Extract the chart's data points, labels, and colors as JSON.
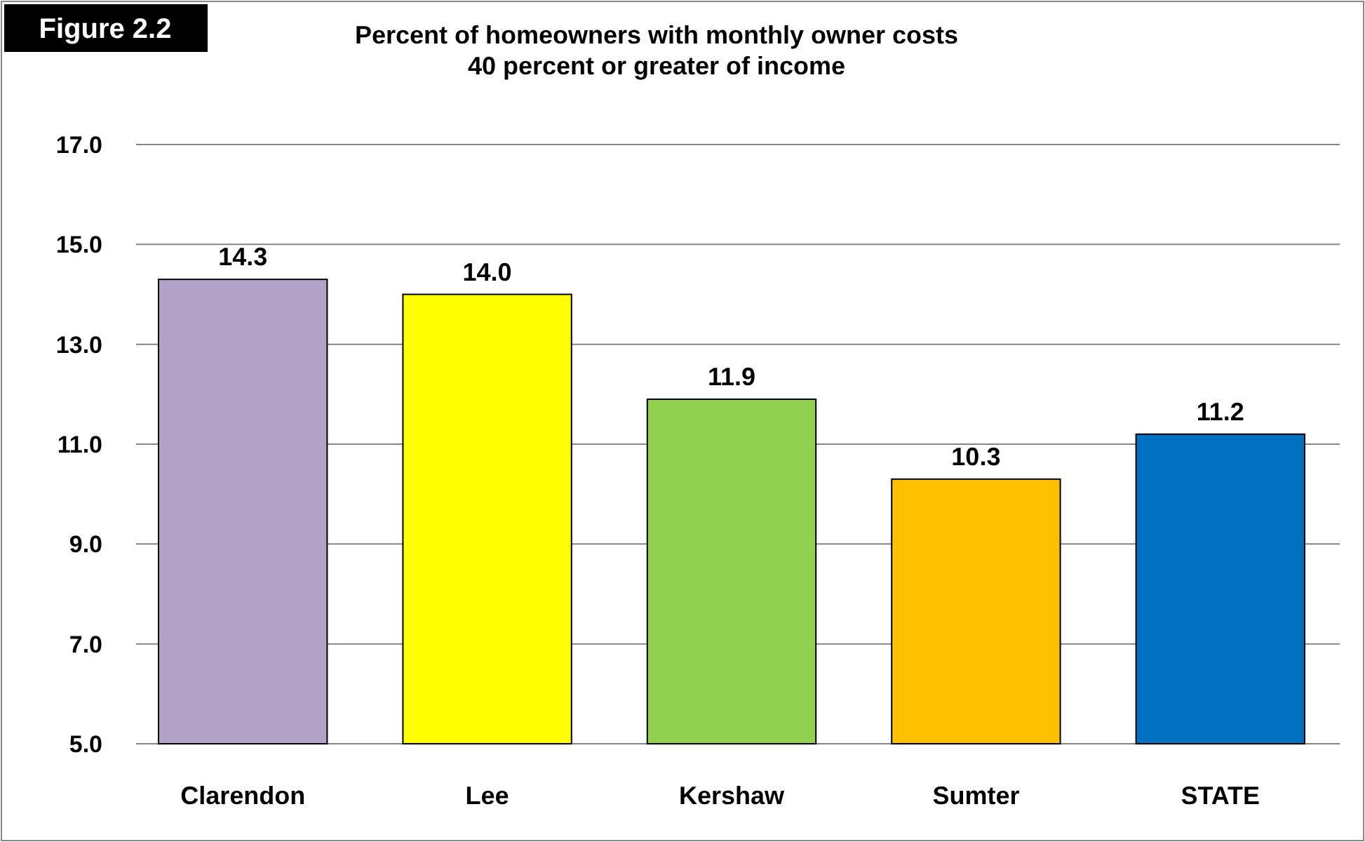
{
  "chart_data": {
    "type": "bar",
    "title": "Percent of homeowners with monthly owner costs\n40 percent or greater of income",
    "annotations": [
      "Figure 2.2"
    ],
    "categories": [
      "Clarendon",
      "Lee",
      "Kershaw",
      "Sumter",
      "STATE"
    ],
    "values": [
      14.3,
      14.0,
      11.9,
      10.3,
      11.2
    ],
    "value_labels": [
      "14.3",
      "14.0",
      "11.9",
      "10.3",
      "11.2"
    ],
    "colors": [
      "#b2a2c7",
      "#ffff00",
      "#92d050",
      "#ffc000",
      "#0070c0"
    ],
    "ylim": [
      5,
      17
    ],
    "yticks": [
      {
        "value": 5,
        "label": "5.0"
      },
      {
        "value": 7,
        "label": "7.0"
      },
      {
        "value": 9,
        "label": "9.0"
      },
      {
        "value": 11,
        "label": "11.0"
      },
      {
        "value": 13,
        "label": "13.0"
      },
      {
        "value": 15,
        "label": "15.0"
      },
      {
        "value": 17,
        "label": "17.0"
      }
    ],
    "grid": "y"
  }
}
